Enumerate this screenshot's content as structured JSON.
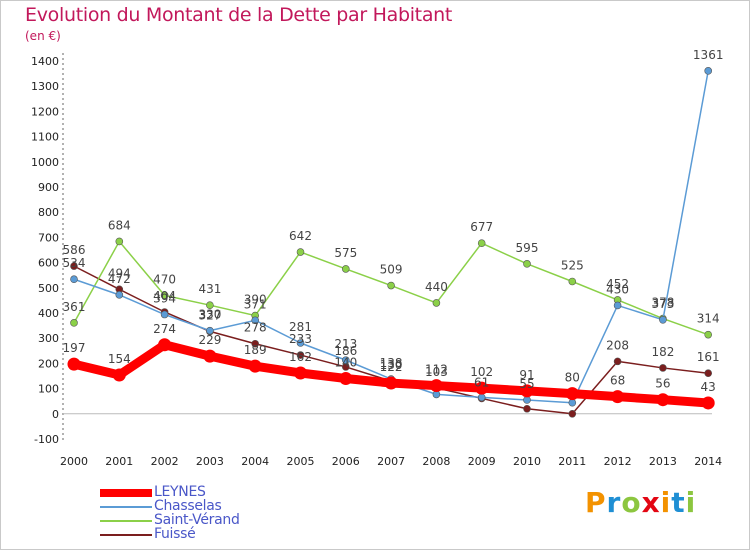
{
  "chart_data": {
    "type": "line",
    "title": "Evolution du Montant de la Dette par Habitant",
    "subtitle": "(en €)",
    "x": [
      "2000",
      "2001",
      "2002",
      "2003",
      "2004",
      "2005",
      "2006",
      "2007",
      "2008",
      "2009",
      "2010",
      "2011",
      "2012",
      "2013",
      "2014"
    ],
    "ylim": [
      -100,
      1400
    ],
    "yticks": [
      -100,
      0,
      100,
      200,
      300,
      400,
      500,
      600,
      700,
      800,
      900,
      1000,
      1100,
      1200,
      1300,
      1400
    ],
    "grid": false,
    "legend_position": "bottom-left",
    "series": [
      {
        "name": "LEYNES",
        "color": "#ff0000",
        "values": [
          197,
          154,
          274,
          229,
          189,
          162,
          140,
          122,
          112,
          102,
          91,
          80,
          68,
          56,
          43
        ]
      },
      {
        "name": "Chasselas",
        "color": "#5b9bd5",
        "values": [
          534,
          472,
          394,
          330,
          371,
          281,
          213,
          138,
          77,
          65,
          55,
          44,
          430,
          373,
          1361
        ]
      },
      {
        "name": "Saint-Vérand",
        "color": "#8bd048",
        "values": [
          361,
          684,
          470,
          431,
          390,
          642,
          575,
          509,
          440,
          677,
          595,
          525,
          452,
          378,
          314
        ]
      },
      {
        "name": "Fuissé",
        "color": "#7b1e1e",
        "values": [
          586,
          494,
          404,
          327,
          278,
          233,
          186,
          130,
          103,
          61,
          20,
          0,
          208,
          182,
          161
        ]
      }
    ],
    "value_labels": [
      {
        "series": 0,
        "values": [
          "197",
          "154",
          "274",
          "229",
          "189",
          "162",
          "140",
          "122",
          "112",
          "102",
          "91",
          "80",
          "68",
          "56",
          "43"
        ]
      },
      {
        "series": 1,
        "values": [
          "534",
          "472",
          "394",
          "330",
          "371",
          "281",
          "213",
          "138",
          "",
          "",
          "55",
          "",
          "430",
          "373",
          "1361"
        ]
      },
      {
        "series": 2,
        "values": [
          "361",
          "684",
          "470",
          "431",
          "390",
          "642",
          "575",
          "509",
          "440",
          "677",
          "595",
          "525",
          "452",
          "378",
          "314"
        ]
      },
      {
        "series": 3,
        "values": [
          "586",
          "494",
          "404",
          "327",
          "278",
          "233",
          "186",
          "130",
          "103",
          "61",
          "",
          "",
          "208",
          "182",
          "161"
        ]
      }
    ]
  },
  "logo": {
    "text": "Proxiti",
    "colors": [
      "#f39200",
      "#1f8fd4",
      "#8cc63f",
      "#e30613",
      "#f39200",
      "#1f8fd4",
      "#8cc63f"
    ]
  }
}
